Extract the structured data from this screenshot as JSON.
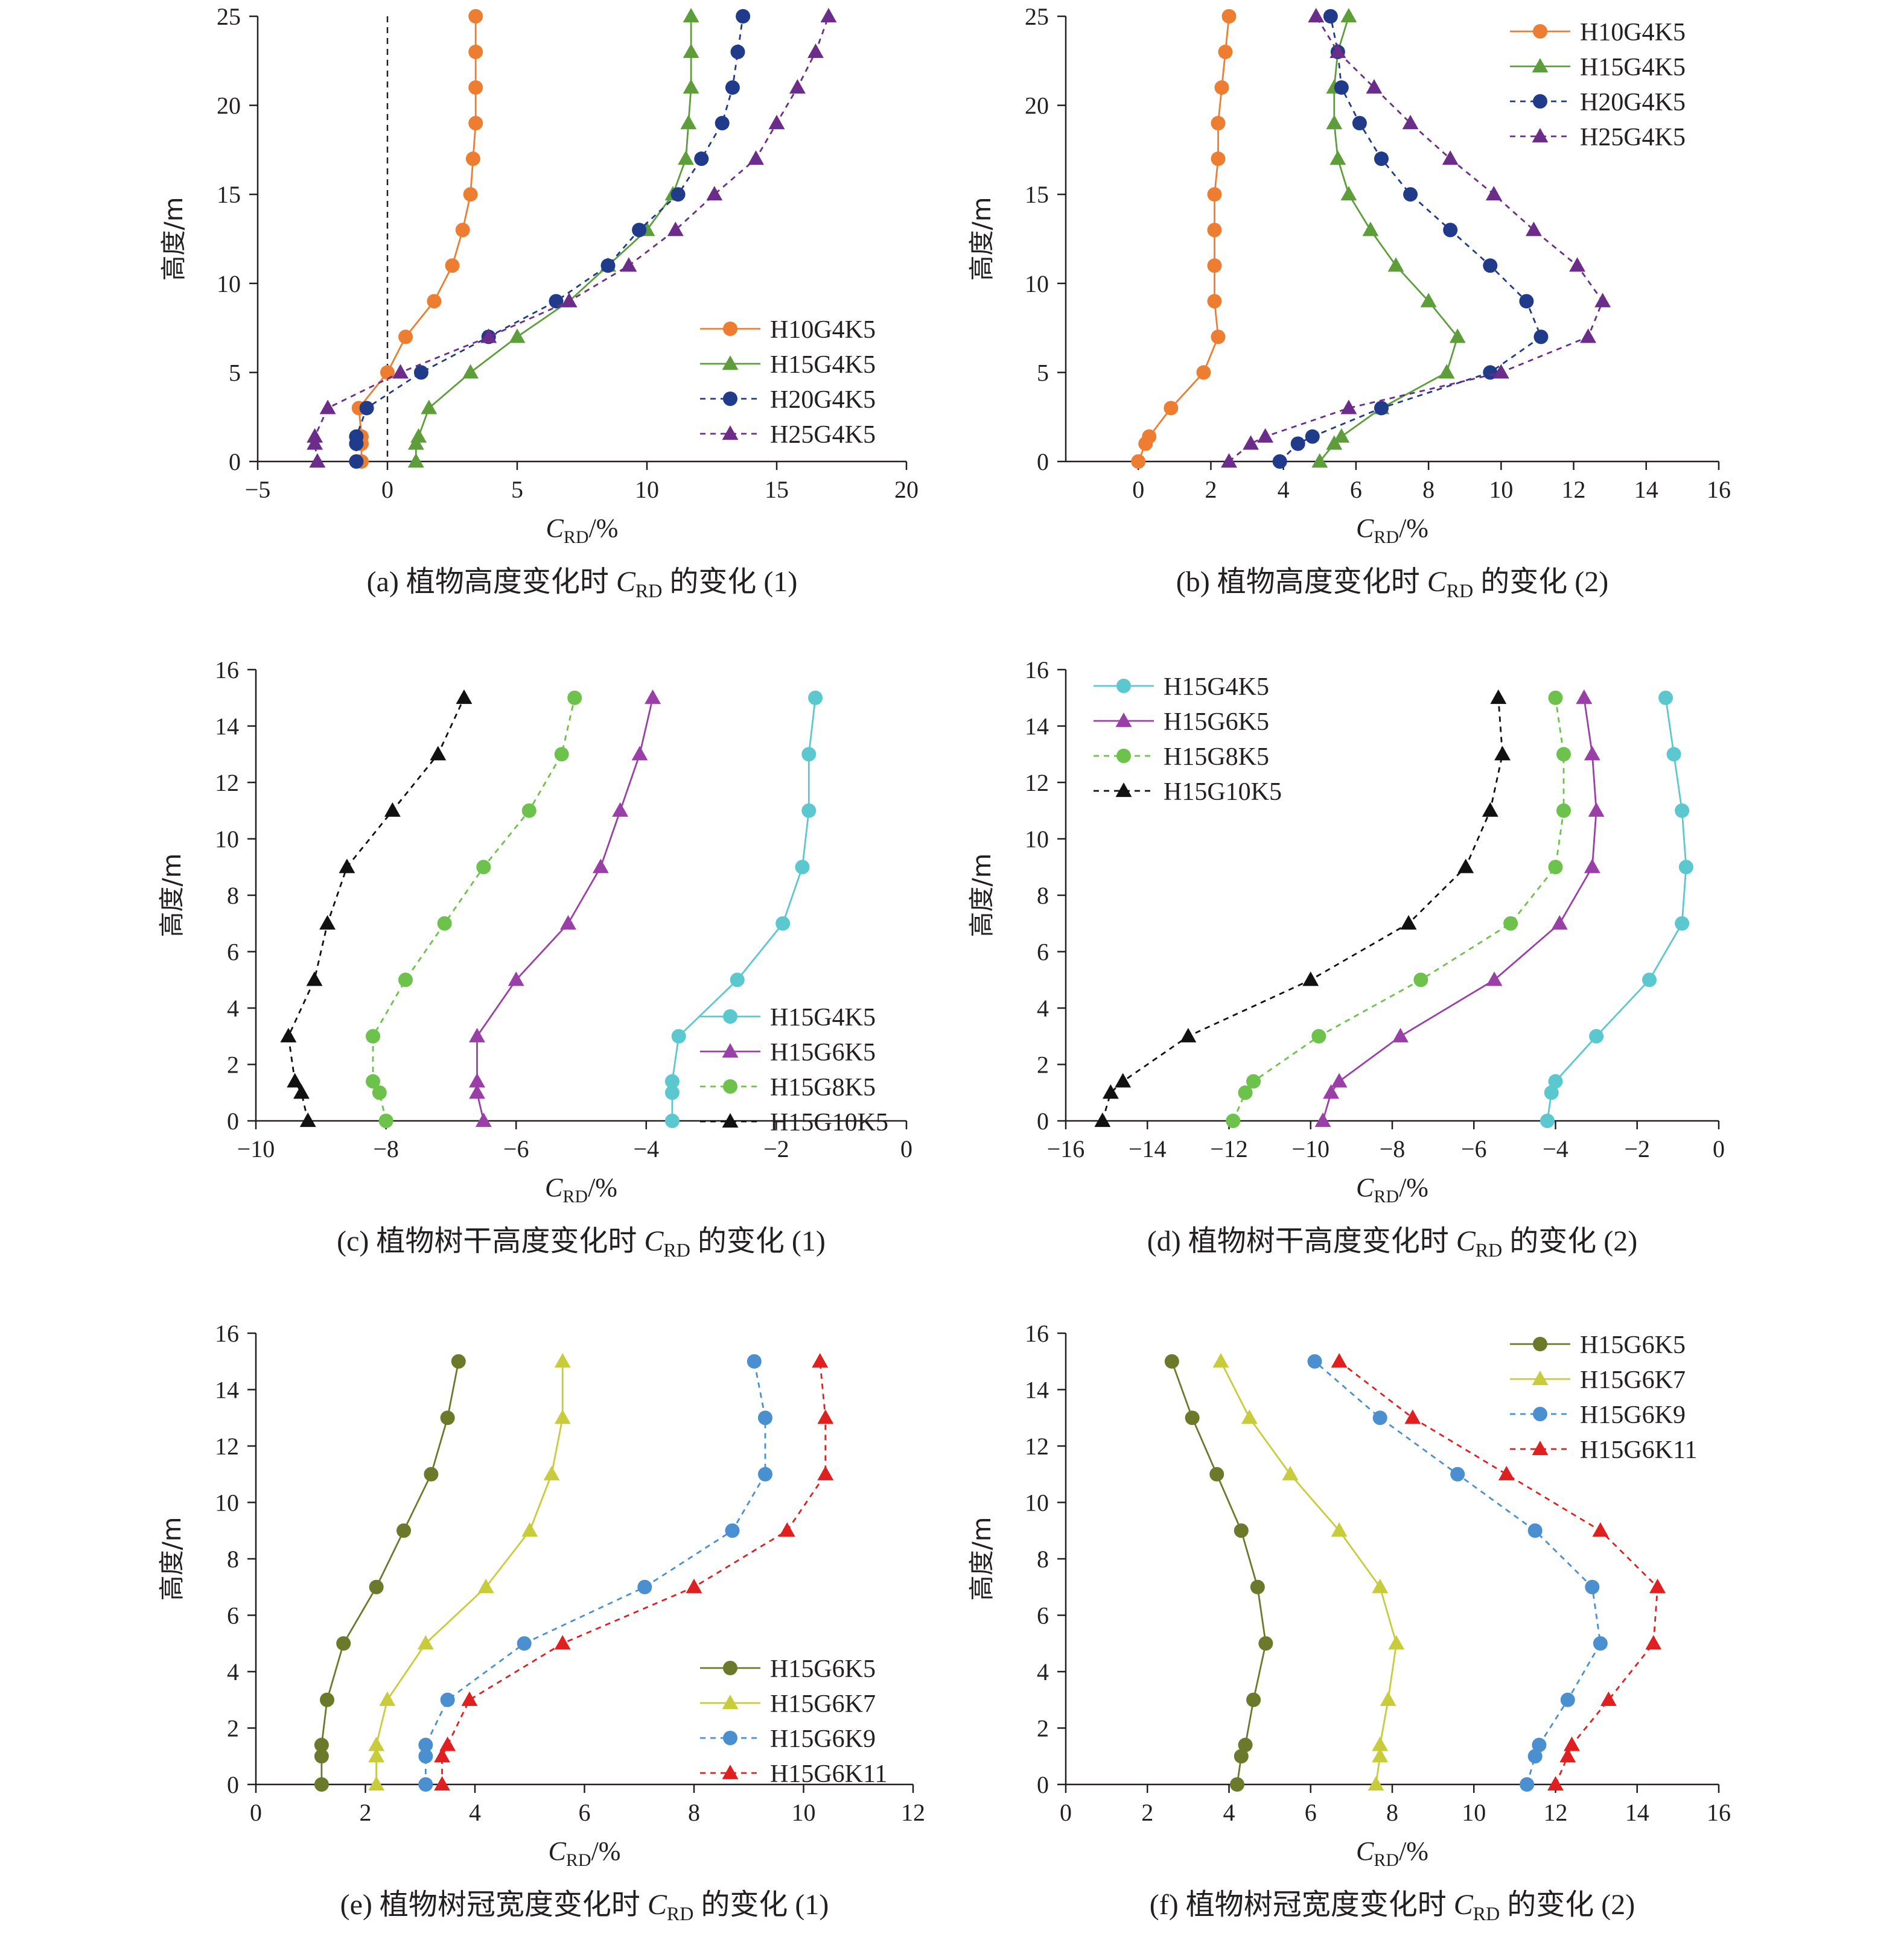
{
  "chart_data": [
    {
      "id": "a",
      "type": "line",
      "caption": "(a) 植物高度变化时 C_RD 的变化 (1)",
      "xlabel": "C_RD/%",
      "ylabel": "高度/m",
      "xlim": [
        -5,
        20
      ],
      "ylim": [
        0,
        25
      ],
      "xticks": [
        -5,
        0,
        5,
        10,
        15,
        20
      ],
      "yticks": [
        0,
        5,
        10,
        15,
        20,
        25
      ],
      "reference_line_x": 0,
      "legend_position": "bottom-right",
      "series": [
        {
          "name": "H10G4K5",
          "color": "#ED7D31",
          "marker": "circle",
          "dash": false,
          "x": [
            -1,
            -1,
            -1,
            -1.1,
            0,
            0.7,
            1.8,
            2.5,
            2.9,
            3.2,
            3.3,
            3.4,
            3.4,
            3.4,
            3.4
          ],
          "y": [
            0,
            1,
            1.4,
            3,
            5,
            7,
            9,
            11,
            13,
            15,
            17,
            19,
            21,
            23,
            25
          ]
        },
        {
          "name": "H15G4K5",
          "color": "#5E9E3A",
          "marker": "triangle",
          "dash": false,
          "x": [
            1.1,
            1.1,
            1.2,
            1.6,
            3.2,
            5,
            7,
            8.5,
            10,
            11,
            11.5,
            11.6,
            11.7,
            11.7,
            11.7
          ],
          "y": [
            0,
            1,
            1.4,
            3,
            5,
            7,
            9,
            11,
            13,
            15,
            17,
            19,
            21,
            23,
            25
          ]
        },
        {
          "name": "H20G4K5",
          "color": "#1F3B8A",
          "marker": "circle",
          "dash": true,
          "x": [
            -1.2,
            -1.2,
            -1.2,
            -0.8,
            1.3,
            3.9,
            6.5,
            8.5,
            9.7,
            11.2,
            12.1,
            12.9,
            13.3,
            13.5,
            13.7
          ],
          "y": [
            0,
            1,
            1.4,
            3,
            5,
            7,
            9,
            11,
            13,
            15,
            17,
            19,
            21,
            23,
            25
          ]
        },
        {
          "name": "H25G4K5",
          "color": "#6B2C8A",
          "marker": "triangle",
          "dash": true,
          "x": [
            -2.7,
            -2.8,
            -2.8,
            -2.3,
            0.5,
            3.9,
            7,
            9.3,
            11.1,
            12.6,
            14.2,
            15,
            15.8,
            16.5,
            17
          ],
          "y": [
            0,
            1,
            1.4,
            3,
            5,
            7,
            9,
            11,
            13,
            15,
            17,
            19,
            21,
            23,
            25
          ]
        }
      ]
    },
    {
      "id": "b",
      "type": "line",
      "caption": "(b) 植物高度变化时 C_RD 的变化 (2)",
      "xlabel": "C_RD/%",
      "ylabel": "高度/m",
      "xlim": [
        -2,
        16
      ],
      "ylim": [
        0,
        25
      ],
      "xticks": [
        0,
        2,
        4,
        6,
        8,
        10,
        12,
        14,
        16
      ],
      "yticks": [
        0,
        5,
        10,
        15,
        20,
        25
      ],
      "legend_position": "top-right",
      "series": [
        {
          "name": "H10G4K5",
          "color": "#ED7D31",
          "marker": "circle",
          "dash": false,
          "x": [
            0,
            0.2,
            0.3,
            0.9,
            1.8,
            2.2,
            2.1,
            2.1,
            2.1,
            2.1,
            2.2,
            2.2,
            2.3,
            2.4,
            2.5
          ],
          "y": [
            0,
            1,
            1.4,
            3,
            5,
            7,
            9,
            11,
            13,
            15,
            17,
            19,
            21,
            23,
            25
          ]
        },
        {
          "name": "H15G4K5",
          "color": "#5E9E3A",
          "marker": "triangle",
          "dash": false,
          "x": [
            5,
            5.4,
            5.6,
            6.7,
            8.5,
            8.8,
            8.0,
            7.1,
            6.4,
            5.8,
            5.5,
            5.4,
            5.4,
            5.5,
            5.8
          ],
          "y": [
            0,
            1,
            1.4,
            3,
            5,
            7,
            9,
            11,
            13,
            15,
            17,
            19,
            21,
            23,
            25
          ]
        },
        {
          "name": "H20G4K5",
          "color": "#1F3B8A",
          "marker": "circle",
          "dash": true,
          "x": [
            3.9,
            4.4,
            4.8,
            6.7,
            9.7,
            11.1,
            10.7,
            9.7,
            8.6,
            7.5,
            6.7,
            6.1,
            5.6,
            5.5,
            5.3
          ],
          "y": [
            0,
            1,
            1.4,
            3,
            5,
            7,
            9,
            11,
            13,
            15,
            17,
            19,
            21,
            23,
            25
          ]
        },
        {
          "name": "H25G4K5",
          "color": "#6B2C8A",
          "marker": "triangle",
          "dash": true,
          "x": [
            2.5,
            3.1,
            3.5,
            5.8,
            10.0,
            12.4,
            12.8,
            12.1,
            10.9,
            9.8,
            8.6,
            7.5,
            6.5,
            5.5,
            4.9
          ],
          "y": [
            0,
            1,
            1.4,
            3,
            5,
            7,
            9,
            11,
            13,
            15,
            17,
            19,
            21,
            23,
            25
          ]
        }
      ]
    },
    {
      "id": "c",
      "type": "line",
      "caption": "(c) 植物树干高度变化时 C_RD 的变化 (1)",
      "xlabel": "C_RD/%",
      "ylabel": "高度/m",
      "xlim": [
        -10,
        0
      ],
      "ylim": [
        0,
        16
      ],
      "xticks": [
        -10,
        -8,
        -6,
        -4,
        -2,
        0
      ],
      "yticks": [
        0,
        2,
        4,
        6,
        8,
        10,
        12,
        14,
        16
      ],
      "legend_position": "bottom-right",
      "series": [
        {
          "name": "H15G4K5",
          "color": "#5BC8D0",
          "marker": "circle",
          "dash": false,
          "x": [
            -3.6,
            -3.6,
            -3.6,
            -3.5,
            -2.6,
            -1.9,
            -1.6,
            -1.5,
            -1.5,
            -1.4
          ],
          "y": [
            0,
            1,
            1.4,
            3,
            5,
            7,
            9,
            11,
            13,
            15
          ]
        },
        {
          "name": "H15G6K5",
          "color": "#9B3FA8",
          "marker": "triangle",
          "dash": false,
          "x": [
            -6.5,
            -6.6,
            -6.6,
            -6.6,
            -6.0,
            -5.2,
            -4.7,
            -4.4,
            -4.1,
            -3.9
          ],
          "y": [
            0,
            1,
            1.4,
            3,
            5,
            7,
            9,
            11,
            13,
            15
          ]
        },
        {
          "name": "H15G8K5",
          "color": "#6CC24A",
          "marker": "circle",
          "dash": true,
          "x": [
            -8.0,
            -8.1,
            -8.2,
            -8.2,
            -7.7,
            -7.1,
            -6.5,
            -5.8,
            -5.3,
            -5.1
          ],
          "y": [
            0,
            1,
            1.4,
            3,
            5,
            7,
            9,
            11,
            13,
            15
          ]
        },
        {
          "name": "H15G10K5",
          "color": "#111111",
          "marker": "triangle",
          "dash": true,
          "x": [
            -9.2,
            -9.3,
            -9.4,
            -9.5,
            -9.1,
            -8.9,
            -8.6,
            -7.9,
            -7.2,
            -6.8
          ],
          "y": [
            0,
            1,
            1.4,
            3,
            5,
            7,
            9,
            11,
            13,
            15
          ]
        }
      ]
    },
    {
      "id": "d",
      "type": "line",
      "caption": "(d) 植物树干高度变化时 C_RD 的变化 (2)",
      "xlabel": "C_RD/%",
      "ylabel": "高度/m",
      "xlim": [
        -16,
        0
      ],
      "ylim": [
        0,
        16
      ],
      "xticks": [
        -16,
        -14,
        -12,
        -10,
        -8,
        -6,
        -4,
        -2,
        0
      ],
      "yticks": [
        0,
        2,
        4,
        6,
        8,
        10,
        12,
        14,
        16
      ],
      "legend_position": "top-left",
      "series": [
        {
          "name": "H15G4K5",
          "color": "#5BC8D0",
          "marker": "circle",
          "dash": false,
          "x": [
            -4.2,
            -4.1,
            -4.0,
            -3.0,
            -1.7,
            -0.9,
            -0.8,
            -0.9,
            -1.1,
            -1.3
          ],
          "y": [
            0,
            1,
            1.4,
            3,
            5,
            7,
            9,
            11,
            13,
            15
          ]
        },
        {
          "name": "H15G6K5",
          "color": "#9B3FA8",
          "marker": "triangle",
          "dash": false,
          "x": [
            -9.7,
            -9.5,
            -9.3,
            -7.8,
            -5.5,
            -3.9,
            -3.1,
            -3.0,
            -3.1,
            -3.3
          ],
          "y": [
            0,
            1,
            1.4,
            3,
            5,
            7,
            9,
            11,
            13,
            15
          ]
        },
        {
          "name": "H15G8K5",
          "color": "#6CC24A",
          "marker": "circle",
          "dash": true,
          "x": [
            -11.9,
            -11.6,
            -11.4,
            -9.8,
            -7.3,
            -5.1,
            -4.0,
            -3.8,
            -3.8,
            -4.0
          ],
          "y": [
            0,
            1,
            1.4,
            3,
            5,
            7,
            9,
            11,
            13,
            15
          ]
        },
        {
          "name": "H15G10K5",
          "color": "#111111",
          "marker": "triangle",
          "dash": true,
          "x": [
            -15.1,
            -14.9,
            -14.6,
            -13.0,
            -10.0,
            -7.6,
            -6.2,
            -5.6,
            -5.3,
            -5.4
          ],
          "y": [
            0,
            1,
            1.4,
            3,
            5,
            7,
            9,
            11,
            13,
            15
          ]
        }
      ]
    },
    {
      "id": "e",
      "type": "line",
      "caption": "(e) 植物树冠宽度变化时 C_RD 的变化 (1)",
      "xlabel": "C_RD/%",
      "ylabel": "高度/m",
      "xlim": [
        0,
        12
      ],
      "ylim": [
        0,
        16
      ],
      "xticks": [
        0,
        2,
        4,
        6,
        8,
        10,
        12
      ],
      "yticks": [
        0,
        2,
        4,
        6,
        8,
        10,
        12,
        14,
        16
      ],
      "legend_position": "bottom-right",
      "series": [
        {
          "name": "H15G6K5",
          "color": "#6B7A2A",
          "marker": "circle",
          "dash": false,
          "x": [
            1.2,
            1.2,
            1.2,
            1.3,
            1.6,
            2.2,
            2.7,
            3.2,
            3.5,
            3.7
          ],
          "y": [
            0,
            1,
            1.4,
            3,
            5,
            7,
            9,
            11,
            13,
            15
          ]
        },
        {
          "name": "H15G6K7",
          "color": "#C8CC3A",
          "marker": "triangle",
          "dash": false,
          "x": [
            2.2,
            2.2,
            2.2,
            2.4,
            3.1,
            4.2,
            5.0,
            5.4,
            5.6,
            5.6
          ],
          "y": [
            0,
            1,
            1.4,
            3,
            5,
            7,
            9,
            11,
            13,
            15
          ]
        },
        {
          "name": "H15G6K9",
          "color": "#4A90D0",
          "marker": "circle",
          "dash": true,
          "x": [
            3.1,
            3.1,
            3.1,
            3.5,
            4.9,
            7.1,
            8.7,
            9.3,
            9.3,
            9.1
          ],
          "y": [
            0,
            1,
            1.4,
            3,
            5,
            7,
            9,
            11,
            13,
            15
          ]
        },
        {
          "name": "H15G6K11",
          "color": "#E02020",
          "marker": "triangle",
          "dash": true,
          "x": [
            3.4,
            3.4,
            3.5,
            3.9,
            5.6,
            8.0,
            9.7,
            10.4,
            10.4,
            10.3
          ],
          "y": [
            0,
            1,
            1.4,
            3,
            5,
            7,
            9,
            11,
            13,
            15
          ]
        }
      ]
    },
    {
      "id": "f",
      "type": "line",
      "caption": "(f) 植物树冠宽度变化时 C_RD 的变化 (2)",
      "xlabel": "C_RD/%",
      "ylabel": "高度/m",
      "xlim": [
        0,
        16
      ],
      "ylim": [
        0,
        16
      ],
      "xticks": [
        0,
        2,
        4,
        6,
        8,
        10,
        12,
        14,
        16
      ],
      "yticks": [
        0,
        2,
        4,
        6,
        8,
        10,
        12,
        14,
        16
      ],
      "legend_position": "top-right",
      "series": [
        {
          "name": "H15G6K5",
          "color": "#6B7A2A",
          "marker": "circle",
          "dash": false,
          "x": [
            4.2,
            4.3,
            4.4,
            4.6,
            4.9,
            4.7,
            4.3,
            3.7,
            3.1,
            2.6
          ],
          "y": [
            0,
            1,
            1.4,
            3,
            5,
            7,
            9,
            11,
            13,
            15
          ]
        },
        {
          "name": "H15G6K7",
          "color": "#C8CC3A",
          "marker": "triangle",
          "dash": false,
          "x": [
            7.6,
            7.7,
            7.7,
            7.9,
            8.1,
            7.7,
            6.7,
            5.5,
            4.5,
            3.8
          ],
          "y": [
            0,
            1,
            1.4,
            3,
            5,
            7,
            9,
            11,
            13,
            15
          ]
        },
        {
          "name": "H15G6K9",
          "color": "#4A90D0",
          "marker": "circle",
          "dash": true,
          "x": [
            11.3,
            11.5,
            11.6,
            12.3,
            13.1,
            12.9,
            11.5,
            9.6,
            7.7,
            6.1
          ],
          "y": [
            0,
            1,
            1.4,
            3,
            5,
            7,
            9,
            11,
            13,
            15
          ]
        },
        {
          "name": "H15G6K11",
          "color": "#E02020",
          "marker": "triangle",
          "dash": true,
          "x": [
            12.0,
            12.3,
            12.4,
            13.3,
            14.4,
            14.5,
            13.1,
            10.8,
            8.5,
            6.7
          ],
          "y": [
            0,
            1,
            1.4,
            3,
            5,
            7,
            9,
            11,
            13,
            15
          ]
        }
      ]
    }
  ],
  "colors": {
    "axis": "#231f20",
    "background": "#ffffff"
  }
}
